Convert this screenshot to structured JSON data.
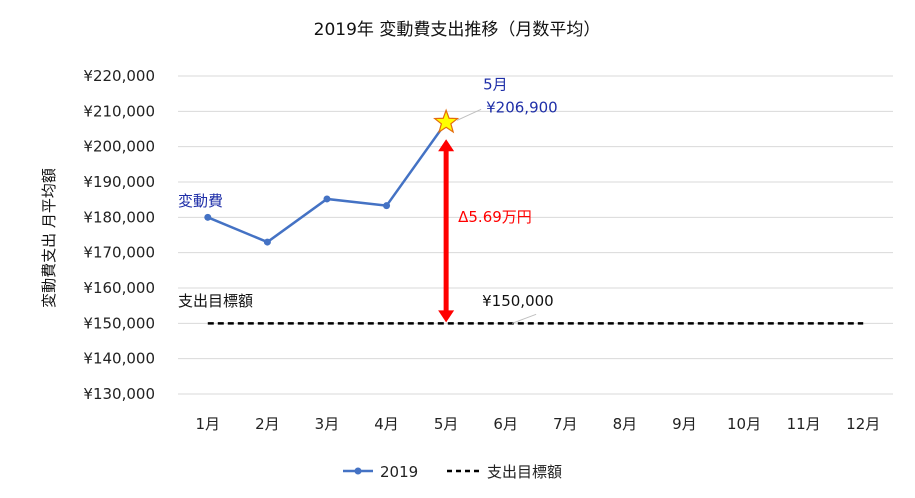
{
  "chart_data": {
    "type": "line",
    "title": "2019年 変動費支出推移（月数平均）",
    "ylabel": "変動費支出 月平均額",
    "xlabel": "",
    "categories": [
      "1月",
      "2月",
      "3月",
      "4月",
      "5月",
      "6月",
      "7月",
      "8月",
      "9月",
      "10月",
      "11月",
      "12月"
    ],
    "ylim": [
      130000,
      220000
    ],
    "yticks": [
      130000,
      140000,
      150000,
      160000,
      170000,
      180000,
      190000,
      200000,
      210000,
      220000
    ],
    "ytick_labels": [
      "¥130,000",
      "¥140,000",
      "¥150,000",
      "¥160,000",
      "¥170,000",
      "¥180,000",
      "¥190,000",
      "¥200,000",
      "¥210,000",
      "¥220,000"
    ],
    "grid": true,
    "series": [
      {
        "name": "2019",
        "color": "#4472c4",
        "style": "solid-with-markers",
        "values": [
          180000,
          173000,
          185200,
          183300,
          206900,
          null,
          null,
          null,
          null,
          null,
          null,
          null
        ]
      },
      {
        "name": "支出目標額",
        "color": "#000000",
        "style": "dashed",
        "values": [
          150000,
          150000,
          150000,
          150000,
          150000,
          150000,
          150000,
          150000,
          150000,
          150000,
          150000,
          150000
        ]
      }
    ],
    "legend": "bottom",
    "annotations": {
      "series_label": "変動費",
      "target_label": "支出目標額",
      "target_value": "¥150,000",
      "peak_month": "5月",
      "peak_value": "¥206,900",
      "peak_icon": "star-icon",
      "difference": "Δ5.69万円",
      "difference_color": "#ff0000",
      "label_color": "#1f2fa8"
    }
  }
}
